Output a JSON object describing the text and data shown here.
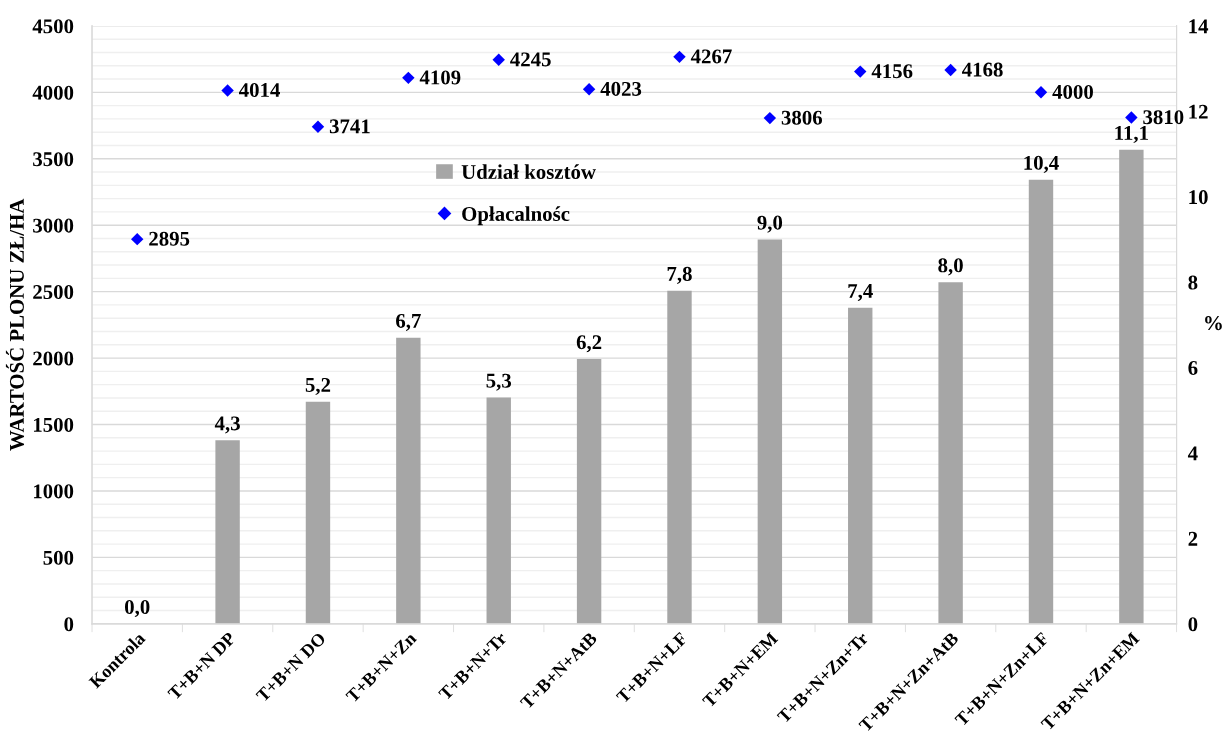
{
  "chart_data": {
    "type": "bar",
    "categories": [
      "Kontrola",
      "T+B+N DP",
      "T+B+N DO",
      "T+B+N+Zn",
      "T+B+N+Tr",
      "T+B+N+AtB",
      "T+B+N+LF",
      "T+B+N+EM",
      "T+B+N+Zn+Tr",
      "T+B+N+Zn+AtB",
      "T+B+N+Zn+LF",
      "T+B+N+Zn+EM"
    ],
    "series": [
      {
        "name": "Udział kosztów",
        "axis": "y2",
        "color": "#a6a6a6",
        "values": [
          0.0,
          4.3,
          5.2,
          6.7,
          5.3,
          6.2,
          7.8,
          9.0,
          7.4,
          8.0,
          10.4,
          11.1
        ],
        "value_labels": [
          "0,0",
          "4,3",
          "5,2",
          "6,7",
          "5,3",
          "6,2",
          "7,8",
          "9,0",
          "7,4",
          "8,0",
          "10,4",
          "11,1"
        ]
      },
      {
        "name": "Opłacalnośc",
        "type": "scatter",
        "axis": "y",
        "color": "#0000ff",
        "values": [
          2895,
          4014,
          3741,
          4109,
          4245,
          4023,
          4267,
          3806,
          4156,
          4168,
          4000,
          3810
        ],
        "value_labels": [
          "2895",
          "4014",
          "3741",
          "4109",
          "4245",
          "4023",
          "4267",
          "3806",
          "4156",
          "4168",
          "4000",
          "3810"
        ]
      }
    ],
    "ylabel": "WARTOŚĆ PLONU ZŁ/HA",
    "y2label": "%",
    "ylim": [
      0,
      4500
    ],
    "yticks": [
      0,
      {
        "value": 100,
        "label": null
      },
      {
        "value": 200,
        "label": null
      },
      {
        "value": 300,
        "label": null
      },
      {
        "value": 400,
        "label": null
      },
      500,
      {
        "value": 600,
        "label": null
      },
      {
        "value": 700,
        "label": null
      },
      {
        "value": 800,
        "label": null
      },
      {
        "value": 900,
        "label": null
      },
      1000,
      {
        "value": 1100,
        "label": null
      },
      {
        "value": 1200,
        "label": null
      },
      {
        "value": 1300,
        "label": null
      },
      {
        "value": 1400,
        "label": null
      },
      1500,
      {
        "value": 1600,
        "label": null
      },
      {
        "value": 1700,
        "label": null
      },
      {
        "value": 1800,
        "label": null
      },
      {
        "value": 1900,
        "label": null
      },
      2000,
      {
        "value": 2100,
        "label": null
      },
      {
        "value": 2200,
        "label": null
      },
      {
        "value": 2300,
        "label": null
      },
      {
        "value": 2400,
        "label": null
      },
      2500,
      {
        "value": 2600,
        "label": null
      },
      {
        "value": 2700,
        "label": null
      },
      {
        "value": 2800,
        "label": null
      },
      {
        "value": 2900,
        "label": null
      },
      3000,
      {
        "value": 3100,
        "label": null
      },
      {
        "value": 3200,
        "label": null
      },
      {
        "value": 3300,
        "label": null
      },
      {
        "value": 3400,
        "label": null
      },
      3500,
      {
        "value": 3600,
        "label": null
      },
      {
        "value": 3700,
        "label": null
      },
      {
        "value": 3800,
        "label": null
      },
      {
        "value": 3900,
        "label": null
      },
      4000,
      {
        "value": 4100,
        "label": null
      },
      {
        "value": 4200,
        "label": null
      },
      {
        "value": 4300,
        "label": null
      },
      {
        "value": 4400,
        "label": null
      },
      4500
    ],
    "y2lim": [
      0,
      14
    ],
    "y2ticks": [
      0,
      2,
      4,
      6,
      8,
      10,
      12,
      14
    ],
    "grid": "y",
    "legend": "top",
    "marker": "diamond"
  }
}
